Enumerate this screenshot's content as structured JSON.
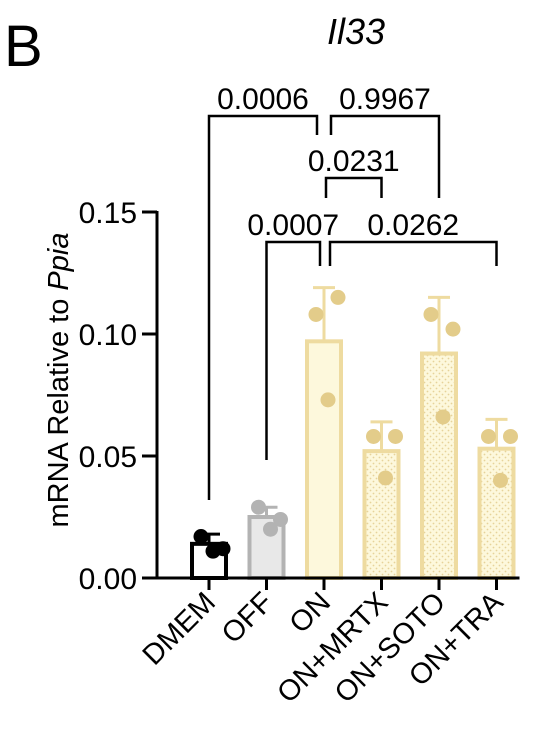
{
  "panel_label": "B",
  "chart_data": {
    "type": "bar",
    "title": "Il33",
    "ylabel_prefix": "mRNA Relative to ",
    "ylabel_gene": "Ppia",
    "ylim": [
      0,
      0.15
    ],
    "yticks": [
      "0.00",
      "0.05",
      "0.10",
      "0.15"
    ],
    "categories": [
      "DMEM",
      "OFF",
      "ON",
      "ON+MRTX",
      "ON+SOTO",
      "ON+TRA"
    ],
    "values": [
      0.014,
      0.025,
      0.097,
      0.052,
      0.092,
      0.053
    ],
    "errors": [
      0.004,
      0.004,
      0.022,
      0.012,
      0.023,
      0.012
    ],
    "points": [
      [
        0.017,
        0.012,
        0.011
      ],
      [
        0.029,
        0.024,
        0.02
      ],
      [
        0.108,
        0.115,
        0.073
      ],
      [
        0.058,
        0.058,
        0.041
      ],
      [
        0.108,
        0.102,
        0.066
      ],
      [
        0.058,
        0.058,
        0.04
      ]
    ],
    "bar_styles": [
      {
        "fill": "#ffffff",
        "stroke": "#000000",
        "point": "#000000",
        "pattern": "none"
      },
      {
        "fill": "#e8e8e8",
        "stroke": "#b3b3b3",
        "point": "#b3b3b3",
        "pattern": "none"
      },
      {
        "fill": "#fdf8dc",
        "stroke": "#eedba0",
        "point": "#e3cc8a",
        "pattern": "none"
      },
      {
        "fill": "#fdf8dc",
        "stroke": "#eedba0",
        "point": "#e3cc8a",
        "pattern": "dots"
      },
      {
        "fill": "#fdf8dc",
        "stroke": "#eedba0",
        "point": "#e3cc8a",
        "pattern": "dots"
      },
      {
        "fill": "#fdf8dc",
        "stroke": "#eedba0",
        "point": "#e3cc8a",
        "pattern": "dots"
      }
    ],
    "comparisons": [
      {
        "from": 0,
        "to": 2,
        "label": "0.0006"
      },
      {
        "from": 2,
        "to": 4,
        "label": "0.9967"
      },
      {
        "from": 2,
        "to": 3,
        "label": "0.0231"
      },
      {
        "from": 1,
        "to": 2,
        "label": "0.0007"
      },
      {
        "from": 2,
        "to": 5,
        "label": "0.0262"
      }
    ],
    "grid": false,
    "legend": "none"
  }
}
